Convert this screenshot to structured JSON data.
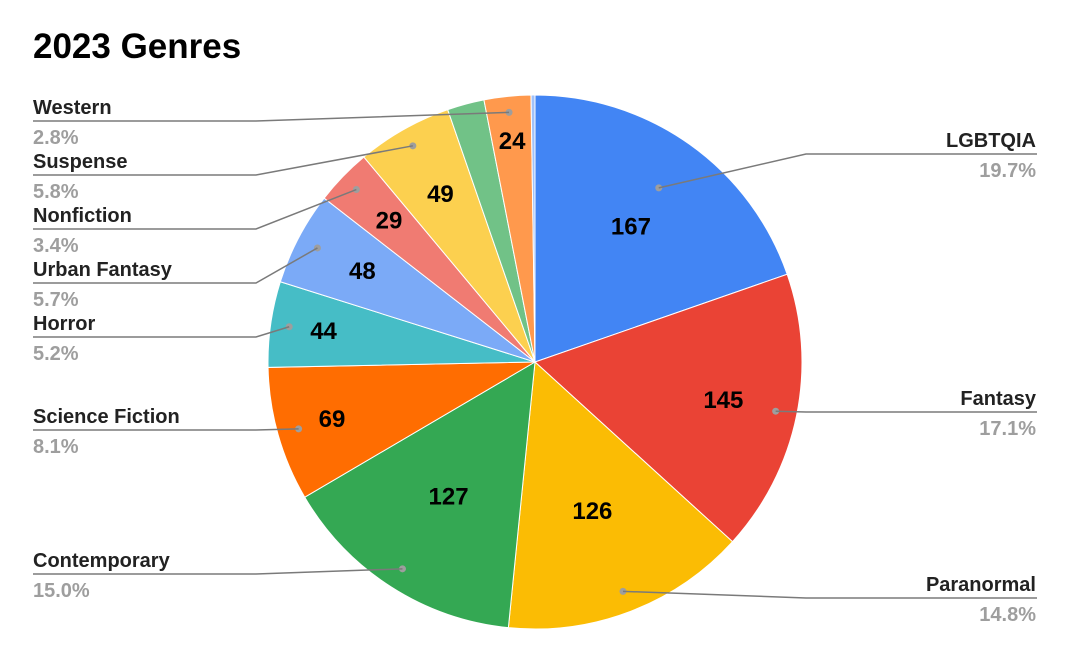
{
  "chart_data": {
    "type": "pie",
    "title": "2023 Genres",
    "slices": [
      {
        "name": "LGBTQIA",
        "value": 167,
        "percent": "19.7%",
        "color": "#4285f4"
      },
      {
        "name": "Fantasy",
        "value": 145,
        "percent": "17.1%",
        "color": "#ea4335"
      },
      {
        "name": "Paranormal",
        "value": 126,
        "percent": "14.8%",
        "color": "#fbbc04"
      },
      {
        "name": "Contemporary",
        "value": 127,
        "percent": "15.0%",
        "color": "#34a853"
      },
      {
        "name": "Science Fiction",
        "value": 69,
        "percent": "8.1%",
        "color": "#ff6d01"
      },
      {
        "name": "Horror",
        "value": 44,
        "percent": "5.2%",
        "color": "#46bdc6"
      },
      {
        "name": "Urban Fantasy",
        "value": 48,
        "percent": "5.7%",
        "color": "#7baaf7"
      },
      {
        "name": "Nonfiction",
        "value": 29,
        "percent": "3.4%",
        "color": "#f07b72"
      },
      {
        "name": "Suspense",
        "value": 49,
        "percent": "5.8%",
        "color": "#fcd04f"
      },
      {
        "name": "",
        "value": 19,
        "percent": "",
        "color": "#71c287"
      },
      {
        "name": "Western",
        "value": 24,
        "percent": "2.8%",
        "color": "#ff994d"
      },
      {
        "name": "",
        "value": 2,
        "percent": "",
        "color": "#a1c2fa"
      }
    ],
    "legend": "callouts"
  }
}
